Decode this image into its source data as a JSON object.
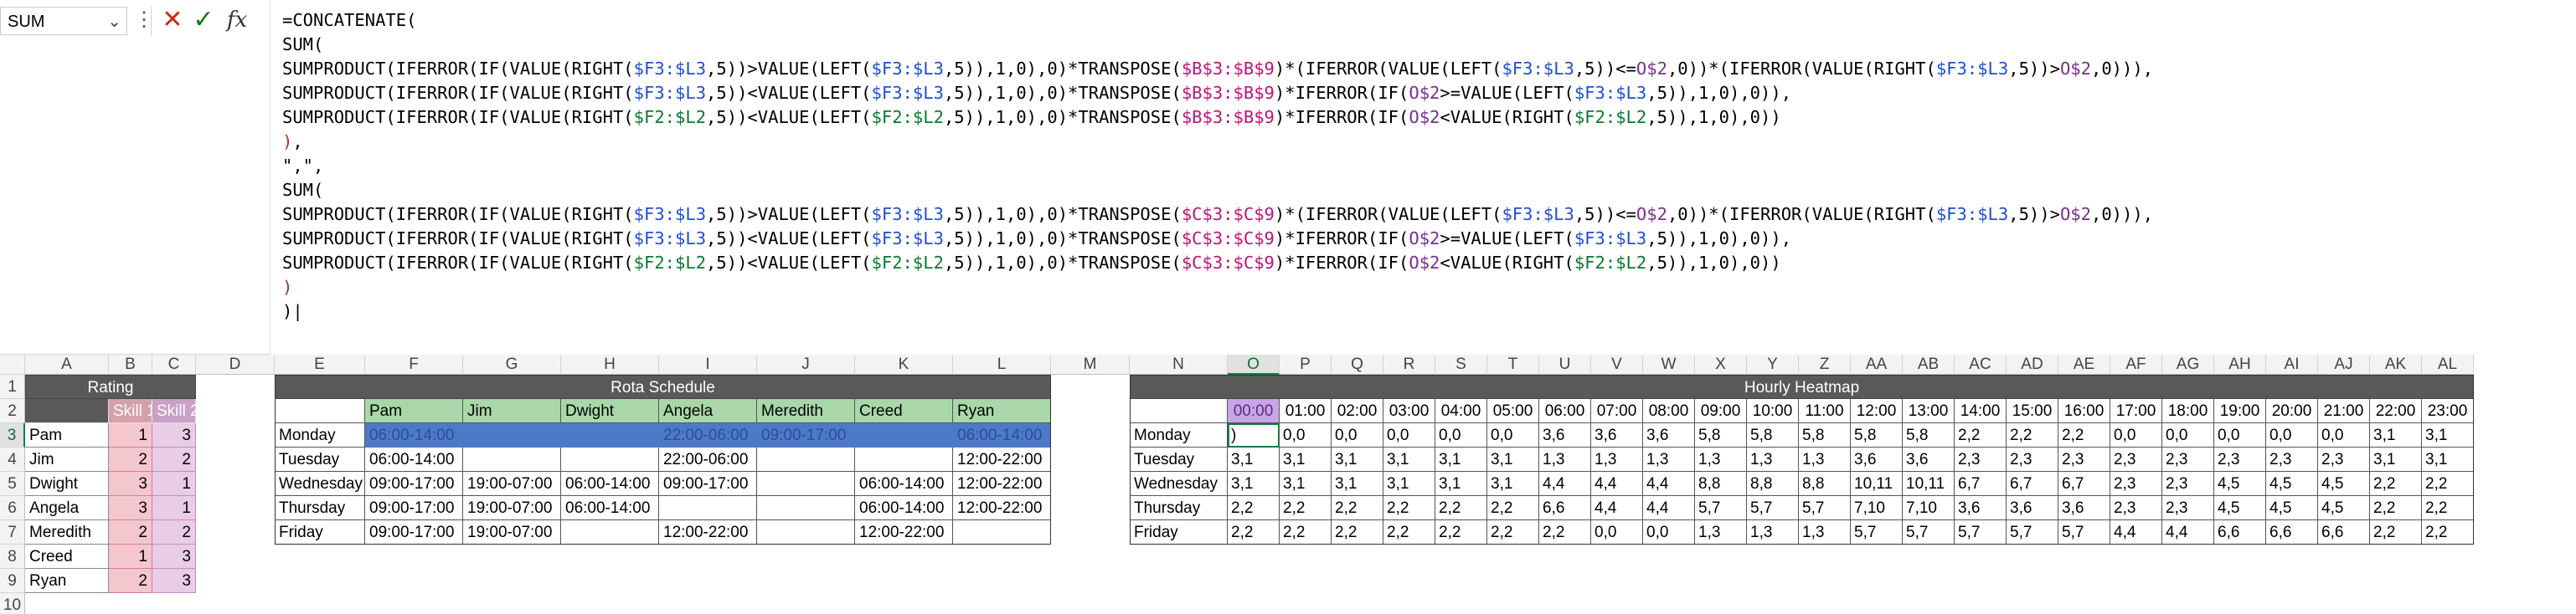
{
  "formula_bar": {
    "name_box": "SUM",
    "cancel_icon": "close-icon",
    "enter_icon": "check-icon",
    "fx_label": "fx",
    "lines": [
      [
        {
          "t": "=CONCATENATE("
        }
      ],
      [
        {
          "t": "SUM("
        }
      ],
      [
        {
          "t": "SUMPRODUCT(IFERROR(IF(VALUE(RIGHT("
        },
        {
          "t": "$F3:$L3",
          "c": "c1"
        },
        {
          "t": ",5))>VALUE(LEFT("
        },
        {
          "t": "$F3:$L3",
          "c": "c1"
        },
        {
          "t": ",5)),1,0),0)*TRANSPOSE("
        },
        {
          "t": "$B$3:$B$9",
          "c": "c4"
        },
        {
          "t": ")*(IFERROR(VALUE(LEFT("
        },
        {
          "t": "$F3:$L3",
          "c": "c1"
        },
        {
          "t": ",5))<="
        },
        {
          "t": "O$2",
          "c": "c2"
        },
        {
          "t": ",0))*(IFERROR(VALUE(RIGHT("
        },
        {
          "t": "$F3:$L3",
          "c": "c1"
        },
        {
          "t": ",5))>"
        },
        {
          "t": "O$2",
          "c": "c2"
        },
        {
          "t": ",0))),"
        }
      ],
      [
        {
          "t": "SUMPRODUCT(IFERROR(IF(VALUE(RIGHT("
        },
        {
          "t": "$F3:$L3",
          "c": "c1"
        },
        {
          "t": ",5))<VALUE(LEFT("
        },
        {
          "t": "$F3:$L3",
          "c": "c1"
        },
        {
          "t": ",5)),1,0),0)*TRANSPOSE("
        },
        {
          "t": "$B$3:$B$9",
          "c": "c4"
        },
        {
          "t": ")*IFERROR(IF("
        },
        {
          "t": "O$2",
          "c": "c2"
        },
        {
          "t": ">=VALUE(LEFT("
        },
        {
          "t": "$F3:$L3",
          "c": "c1"
        },
        {
          "t": ",5)),1,0),0)),"
        }
      ],
      [
        {
          "t": "SUMPRODUCT(IFERROR(IF(VALUE(RIGHT("
        },
        {
          "t": "$F2:$L2",
          "c": "c3"
        },
        {
          "t": ",5))<VALUE(LEFT("
        },
        {
          "t": "$F2:$L2",
          "c": "c3"
        },
        {
          "t": ",5)),1,0),0)*TRANSPOSE("
        },
        {
          "t": "$B$3:$B$9",
          "c": "c4"
        },
        {
          "t": ")*IFERROR(IF("
        },
        {
          "t": "O$2",
          "c": "c2"
        },
        {
          "t": "<VALUE(RIGHT("
        },
        {
          "t": "$F2:$L2",
          "c": "c3"
        },
        {
          "t": ",5)),1,0),0))"
        }
      ],
      [
        {
          "t": ")",
          "c": "cred"
        },
        {
          "t": ","
        }
      ],
      [
        {
          "t": "\",\","
        }
      ],
      [
        {
          "t": "SUM("
        }
      ],
      [
        {
          "t": "SUMPRODUCT(IFERROR(IF(VALUE(RIGHT("
        },
        {
          "t": "$F3:$L3",
          "c": "c1"
        },
        {
          "t": ",5))>VALUE(LEFT("
        },
        {
          "t": "$F3:$L3",
          "c": "c1"
        },
        {
          "t": ",5)),1,0),0)*TRANSPOSE("
        },
        {
          "t": "$C$3:$C$9",
          "c": "c4"
        },
        {
          "t": ")*(IFERROR(VALUE(LEFT("
        },
        {
          "t": "$F3:$L3",
          "c": "c1"
        },
        {
          "t": ",5))<="
        },
        {
          "t": "O$2",
          "c": "c2"
        },
        {
          "t": ",0))*(IFERROR(VALUE(RIGHT("
        },
        {
          "t": "$F3:$L3",
          "c": "c1"
        },
        {
          "t": ",5))>"
        },
        {
          "t": "O$2",
          "c": "c2"
        },
        {
          "t": ",0))),"
        }
      ],
      [
        {
          "t": "SUMPRODUCT(IFERROR(IF(VALUE(RIGHT("
        },
        {
          "t": "$F3:$L3",
          "c": "c1"
        },
        {
          "t": ",5))<VALUE(LEFT("
        },
        {
          "t": "$F3:$L3",
          "c": "c1"
        },
        {
          "t": ",5)),1,0),0)*TRANSPOSE("
        },
        {
          "t": "$C$3:$C$9",
          "c": "c4"
        },
        {
          "t": ")*IFERROR(IF("
        },
        {
          "t": "O$2",
          "c": "c2"
        },
        {
          "t": ">=VALUE(LEFT("
        },
        {
          "t": "$F3:$L3",
          "c": "c1"
        },
        {
          "t": ",5)),1,0),0)),"
        }
      ],
      [
        {
          "t": "SUMPRODUCT(IFERROR(IF(VALUE(RIGHT("
        },
        {
          "t": "$F2:$L2",
          "c": "c3"
        },
        {
          "t": ",5))<VALUE(LEFT("
        },
        {
          "t": "$F2:$L2",
          "c": "c3"
        },
        {
          "t": ",5)),1,0),0)*TRANSPOSE("
        },
        {
          "t": "$C$3:$C$9",
          "c": "c4"
        },
        {
          "t": ")*IFERROR(IF("
        },
        {
          "t": "O$2",
          "c": "c2"
        },
        {
          "t": "<VALUE(RIGHT("
        },
        {
          "t": "$F2:$L2",
          "c": "c3"
        },
        {
          "t": ",5)),1,0),0))"
        }
      ],
      [
        {
          "t": ")",
          "c": "cred"
        }
      ],
      [
        {
          "t": ")|"
        }
      ]
    ]
  },
  "columns": [
    "A",
    "B",
    "C",
    "D",
    "E",
    "F",
    "G",
    "H",
    "I",
    "J",
    "K",
    "L",
    "M",
    "N",
    "O",
    "P",
    "Q",
    "R",
    "S",
    "T",
    "U",
    "V",
    "W",
    "X",
    "Y",
    "Z",
    "AA",
    "AB",
    "AC",
    "AD",
    "AE",
    "AF",
    "AG",
    "AH",
    "AI",
    "AJ",
    "AK",
    "AL"
  ],
  "rows": [
    "1",
    "2",
    "3",
    "4",
    "5",
    "6",
    "7",
    "8",
    "9",
    "10"
  ],
  "rating": {
    "title": "Rating",
    "skill1_header": "Skill 1",
    "skill2_header": "Skill 2",
    "people": [
      {
        "name": "Pam",
        "s1": "1",
        "s2": "3"
      },
      {
        "name": "Jim",
        "s1": "2",
        "s2": "2"
      },
      {
        "name": "Dwight",
        "s1": "3",
        "s2": "1"
      },
      {
        "name": "Angela",
        "s1": "3",
        "s2": "1"
      },
      {
        "name": "Meredith",
        "s1": "2",
        "s2": "2"
      },
      {
        "name": "Creed",
        "s1": "1",
        "s2": "3"
      },
      {
        "name": "Ryan",
        "s1": "2",
        "s2": "3"
      }
    ]
  },
  "rota": {
    "title": "Rota Schedule",
    "names": [
      "Pam",
      "Jim",
      "Dwight",
      "Angela",
      "Meredith",
      "Creed",
      "Ryan"
    ],
    "days": [
      {
        "day": "Monday",
        "shifts": [
          "06:00-14:00",
          "",
          "",
          "22:00-06:00",
          "09:00-17:00",
          "",
          "06:00-14:00"
        ]
      },
      {
        "day": "Tuesday",
        "shifts": [
          "06:00-14:00",
          "",
          "",
          "22:00-06:00",
          "",
          "",
          "12:00-22:00"
        ]
      },
      {
        "day": "Wednesday",
        "shifts": [
          "09:00-17:00",
          "19:00-07:00",
          "06:00-14:00",
          "09:00-17:00",
          "",
          "06:00-14:00",
          "12:00-22:00"
        ]
      },
      {
        "day": "Thursday",
        "shifts": [
          "09:00-17:00",
          "19:00-07:00",
          "06:00-14:00",
          "",
          "",
          "06:00-14:00",
          "12:00-22:00"
        ]
      },
      {
        "day": "Friday",
        "shifts": [
          "09:00-17:00",
          "19:00-07:00",
          "",
          "12:00-22:00",
          "",
          "12:00-22:00",
          ""
        ]
      }
    ]
  },
  "heatmap": {
    "title": "Hourly Heatmap",
    "hours": [
      "00:00",
      "01:00",
      "02:00",
      "03:00",
      "04:00",
      "05:00",
      "06:00",
      "07:00",
      "08:00",
      "09:00",
      "10:00",
      "11:00",
      "12:00",
      "13:00",
      "14:00",
      "15:00",
      "16:00",
      "17:00",
      "18:00",
      "19:00",
      "20:00",
      "21:00",
      "22:00",
      "23:00"
    ],
    "days": [
      {
        "day": "Monday",
        "vals": [
          ")",
          "0,0",
          "0,0",
          "0,0",
          "0,0",
          "0,0",
          "3,6",
          "3,6",
          "3,6",
          "5,8",
          "5,8",
          "5,8",
          "5,8",
          "5,8",
          "2,2",
          "2,2",
          "2,2",
          "0,0",
          "0,0",
          "0,0",
          "0,0",
          "0,0",
          "3,1",
          "3,1"
        ]
      },
      {
        "day": "Tuesday",
        "vals": [
          "3,1",
          "3,1",
          "3,1",
          "3,1",
          "3,1",
          "3,1",
          "1,3",
          "1,3",
          "1,3",
          "1,3",
          "1,3",
          "1,3",
          "3,6",
          "3,6",
          "2,3",
          "2,3",
          "2,3",
          "2,3",
          "2,3",
          "2,3",
          "2,3",
          "2,3",
          "3,1",
          "3,1"
        ]
      },
      {
        "day": "Wednesday",
        "vals": [
          "3,1",
          "3,1",
          "3,1",
          "3,1",
          "3,1",
          "3,1",
          "4,4",
          "4,4",
          "4,4",
          "8,8",
          "8,8",
          "8,8",
          "10,11",
          "10,11",
          "6,7",
          "6,7",
          "6,7",
          "2,3",
          "2,3",
          "4,5",
          "4,5",
          "4,5",
          "2,2",
          "2,2"
        ]
      },
      {
        "day": "Thursday",
        "vals": [
          "2,2",
          "2,2",
          "2,2",
          "2,2",
          "2,2",
          "2,2",
          "6,6",
          "4,4",
          "4,4",
          "5,7",
          "5,7",
          "5,7",
          "7,10",
          "7,10",
          "3,6",
          "3,6",
          "3,6",
          "2,3",
          "2,3",
          "4,5",
          "4,5",
          "4,5",
          "2,2",
          "2,2"
        ]
      },
      {
        "day": "Friday",
        "vals": [
          "2,2",
          "2,2",
          "2,2",
          "2,2",
          "2,2",
          "2,2",
          "2,2",
          "0,0",
          "0,0",
          "1,3",
          "1,3",
          "1,3",
          "5,7",
          "5,7",
          "5,7",
          "5,7",
          "5,7",
          "4,4",
          "4,4",
          "6,6",
          "6,6",
          "6,6",
          "2,2",
          "2,2"
        ]
      }
    ]
  },
  "colors": {
    "rating_header": "#595959",
    "rota_header": "#595959",
    "heatmap_header": "#595959",
    "skill1_fill": "#f4c7cf",
    "skill2_fill": "#e9cce5",
    "rota_name_fill": "#a9d7a9",
    "rota_selection": "#4d79c9",
    "selection_green": "#107c41"
  }
}
